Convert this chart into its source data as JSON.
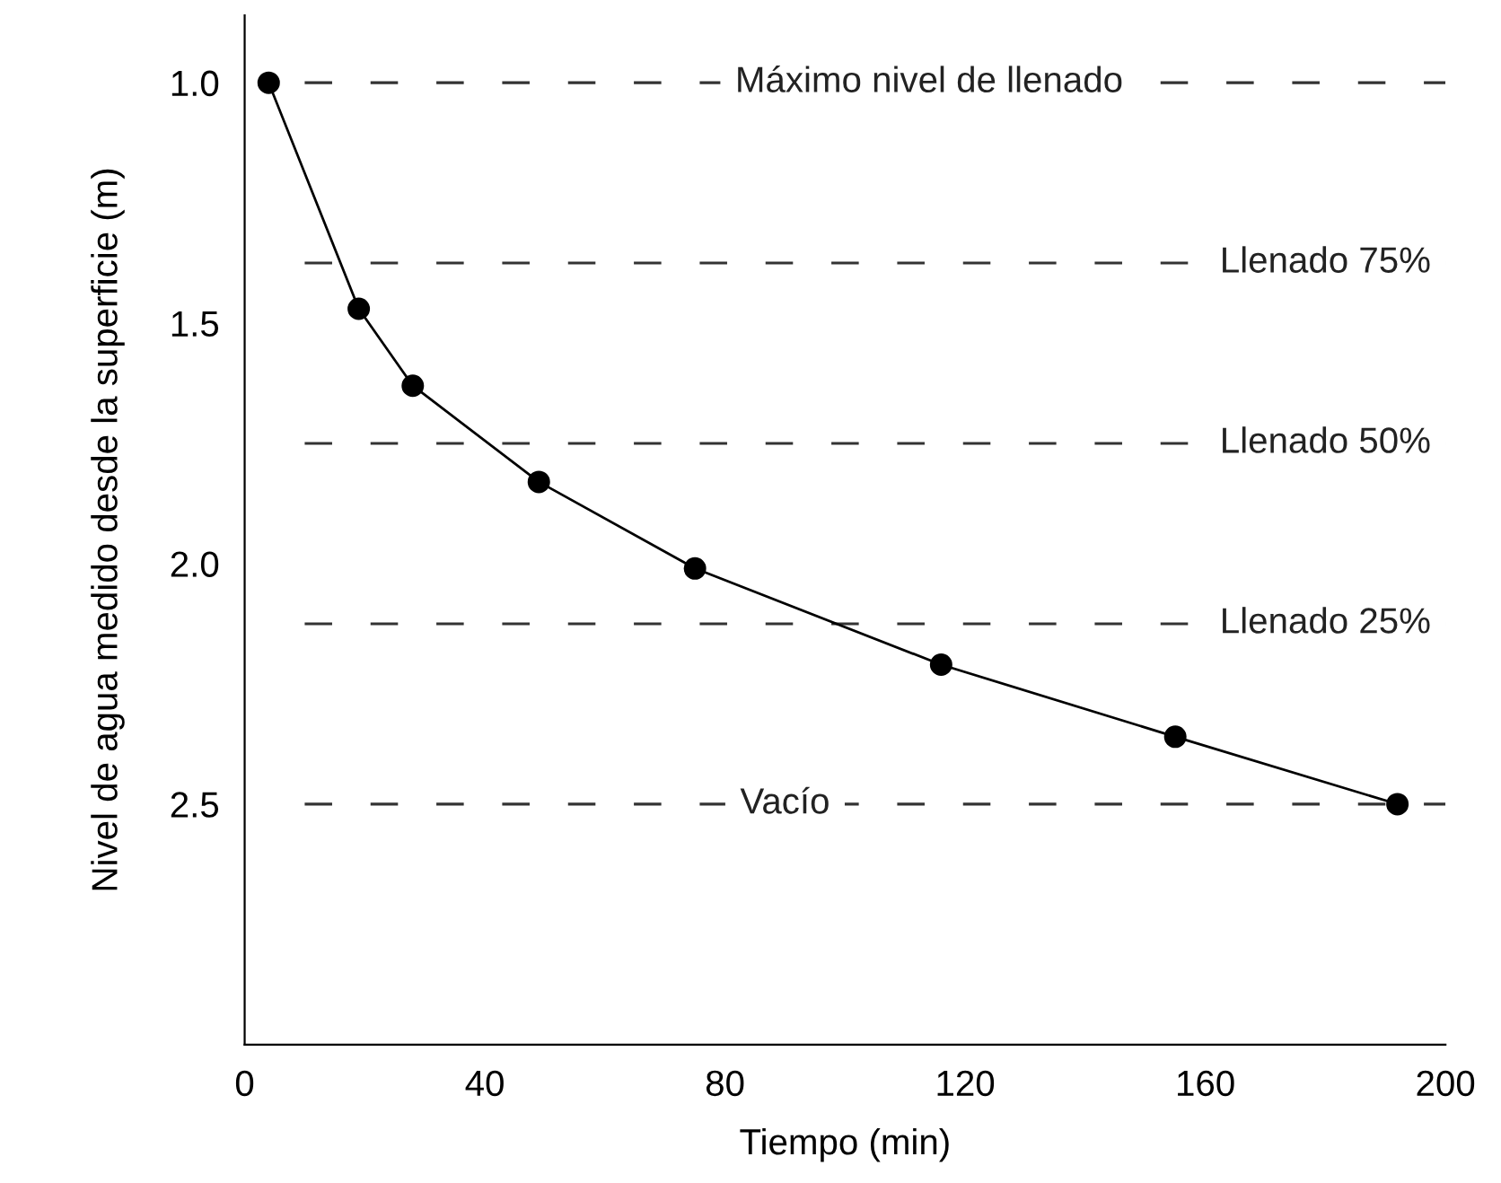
{
  "chart_data": {
    "type": "line",
    "xlabel": "Tiempo (min)",
    "ylabel": "Nivel de agua medido desde la superficie (m)",
    "x": [
      4,
      19,
      28,
      49,
      75,
      116,
      155,
      192
    ],
    "series": [
      {
        "color": "#000000",
        "values": [
          1.0,
          1.47,
          1.63,
          1.83,
          2.01,
          2.21,
          2.36,
          2.5
        ]
      }
    ],
    "marker": "circle",
    "line_style": "solid",
    "grid": false,
    "legend": false,
    "xlim": [
      0,
      200
    ],
    "xticks": [
      0,
      40,
      80,
      120,
      160,
      200
    ],
    "ylim": [
      3.0,
      0.86
    ],
    "yticks": [
      {
        "value": 1.0,
        "label": "1.0"
      },
      {
        "value": 1.5,
        "label": "1.5"
      },
      {
        "value": 2.0,
        "label": "2.0"
      },
      {
        "value": 2.5,
        "label": "2.5"
      }
    ],
    "ref_lines": [
      {
        "axis": "y",
        "value": 1.0,
        "label": "Máximo nivel de llenado",
        "color": "#333333",
        "line_style": "dashed"
      },
      {
        "axis": "y",
        "value": 1.375,
        "label": "Llenado 75%",
        "color": "#333333",
        "line_style": "dashed"
      },
      {
        "axis": "y",
        "value": 1.75,
        "label": "Llenado 50%",
        "color": "#333333",
        "line_style": "dashed"
      },
      {
        "axis": "y",
        "value": 2.125,
        "label": "Llenado 25%",
        "color": "#333333",
        "line_style": "dashed"
      },
      {
        "axis": "y",
        "value": 2.5,
        "label": "Vacío",
        "color": "#333333",
        "line_style": "dashed"
      }
    ]
  }
}
